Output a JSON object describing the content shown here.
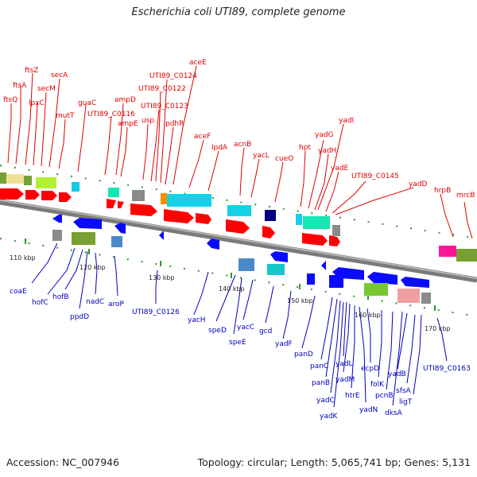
{
  "title": "Escherichia coli UTI89, complete genome",
  "accession": "Accession: NC_007946",
  "summary": "Topology: circular; Length: 5,065,741 bp; Genes: 5,131",
  "ticks": [
    "110 kbp",
    "120 kbp",
    "130 kbp",
    "140 kbp",
    "150 kbp",
    "160 kbp",
    "170 kbp"
  ],
  "top_genes": [
    "ftsQ",
    "ftsA",
    "ftsZ",
    "lpxC",
    "secM",
    "secA",
    "mutT",
    "guaC",
    "UTI89_C0116",
    "ampD",
    "ampE",
    "usp",
    "UTI89_C0123",
    "UTI89_C0122",
    "aceE",
    "UTI89_C0124",
    "pdhR",
    "aceF",
    "lpdA",
    "acnB",
    "yacL",
    "cueO",
    "hpt",
    "yadG",
    "yadI",
    "yadH",
    "yadE",
    "UTI89_C0145",
    "yadD",
    "hrpB",
    "mrcB"
  ],
  "bottom_genes": [
    "coaE",
    "hofC",
    "hofB",
    "ppdD",
    "nadC",
    "aroP",
    "UTI89_C0126",
    "yacH",
    "speD",
    "speE",
    "yacC",
    "gcd",
    "yadF",
    "panD",
    "panC",
    "panB",
    "yadC",
    "yadK",
    "yadL",
    "yadM",
    "htrE",
    "yadN",
    "ecpD",
    "folK",
    "pcnB",
    "dksA",
    "yadB",
    "sfsA",
    "ligT",
    "UTI89_C0163"
  ]
}
